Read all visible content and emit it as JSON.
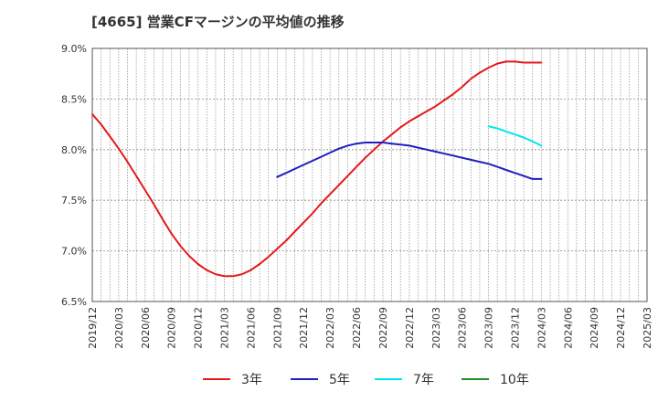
{
  "chart_data": {
    "type": "line",
    "title": "[4665]  営業CFマージンの平均値の推移",
    "xlabel": "",
    "ylabel": "",
    "ylim": [
      6.5,
      9.0
    ],
    "y_ticks": [
      "6.5%",
      "7.0%",
      "7.5%",
      "8.0%",
      "8.5%",
      "9.0%"
    ],
    "y_tick_values": [
      6.5,
      7.0,
      7.5,
      8.0,
      8.5,
      9.0
    ],
    "x_ticks": [
      "2019/12",
      "2020/03",
      "2020/06",
      "2020/09",
      "2020/12",
      "2021/03",
      "2021/06",
      "2021/09",
      "2021/12",
      "2022/03",
      "2022/06",
      "2022/09",
      "2022/12",
      "2023/03",
      "2023/06",
      "2023/09",
      "2023/12",
      "2024/03",
      "2024/06",
      "2024/09",
      "2024/12",
      "2025/03"
    ],
    "grid": true,
    "legend_position": "bottom",
    "series": [
      {
        "name": "3年",
        "color": "#e31a1c",
        "x": [
          "2019/12",
          "2020/01",
          "2020/02",
          "2020/03",
          "2020/04",
          "2020/05",
          "2020/06",
          "2020/07",
          "2020/08",
          "2020/09",
          "2020/10",
          "2020/11",
          "2020/12",
          "2021/01",
          "2021/02",
          "2021/03",
          "2021/04",
          "2021/05",
          "2021/06",
          "2021/07",
          "2021/08",
          "2021/09",
          "2021/10",
          "2021/11",
          "2021/12",
          "2022/01",
          "2022/02",
          "2022/03",
          "2022/04",
          "2022/05",
          "2022/06",
          "2022/07",
          "2022/08",
          "2022/09",
          "2022/10",
          "2022/11",
          "2022/12",
          "2023/01",
          "2023/02",
          "2023/03",
          "2023/04",
          "2023/05",
          "2023/06",
          "2023/07",
          "2023/08",
          "2023/09",
          "2023/10",
          "2023/11",
          "2023/12",
          "2024/01",
          "2024/02",
          "2024/03"
        ],
        "values": [
          8.35,
          8.25,
          8.13,
          8.01,
          7.88,
          7.74,
          7.6,
          7.46,
          7.31,
          7.17,
          7.05,
          6.95,
          6.87,
          6.81,
          6.77,
          6.75,
          6.75,
          6.77,
          6.81,
          6.87,
          6.94,
          7.02,
          7.1,
          7.19,
          7.28,
          7.37,
          7.47,
          7.56,
          7.65,
          7.74,
          7.83,
          7.92,
          8.0,
          8.08,
          8.15,
          8.22,
          8.28,
          8.33,
          8.38,
          8.43,
          8.49,
          8.55,
          8.62,
          8.7,
          8.76,
          8.81,
          8.85,
          8.87,
          8.87,
          8.86,
          8.86,
          8.86
        ]
      },
      {
        "name": "5年",
        "color": "#1f1fbf",
        "x": [
          "2021/09",
          "2021/10",
          "2021/11",
          "2021/12",
          "2022/01",
          "2022/02",
          "2022/03",
          "2022/04",
          "2022/05",
          "2022/06",
          "2022/07",
          "2022/08",
          "2022/09",
          "2022/10",
          "2022/11",
          "2022/12",
          "2023/01",
          "2023/02",
          "2023/03",
          "2023/04",
          "2023/05",
          "2023/06",
          "2023/07",
          "2023/08",
          "2023/09",
          "2023/10",
          "2023/11",
          "2023/12",
          "2024/01",
          "2024/02",
          "2024/03"
        ],
        "values": [
          7.73,
          7.77,
          7.81,
          7.85,
          7.89,
          7.93,
          7.97,
          8.01,
          8.04,
          8.06,
          8.07,
          8.07,
          8.07,
          8.06,
          8.05,
          8.04,
          8.02,
          8.0,
          7.98,
          7.96,
          7.94,
          7.92,
          7.9,
          7.88,
          7.86,
          7.83,
          7.8,
          7.77,
          7.74,
          7.71,
          7.71
        ]
      },
      {
        "name": "7年",
        "color": "#00e5ee",
        "x": [
          "2023/09",
          "2023/10",
          "2023/11",
          "2023/12",
          "2024/01",
          "2024/02",
          "2024/03"
        ],
        "values": [
          8.23,
          8.21,
          8.18,
          8.15,
          8.12,
          8.08,
          8.04
        ]
      },
      {
        "name": "10年",
        "color": "#228b22",
        "x": [],
        "values": []
      }
    ]
  }
}
